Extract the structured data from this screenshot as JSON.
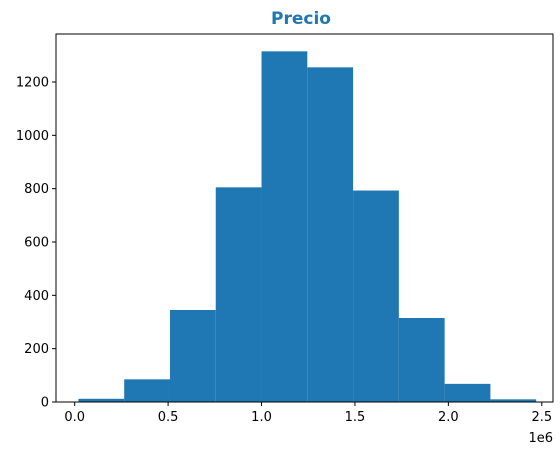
{
  "chart_data": {
    "type": "bar",
    "title": "Precio",
    "title_color": "#1f77b4",
    "bar_color": "#1f77b4",
    "xlabel": "",
    "ylabel": "",
    "x_offset_label": "1e6",
    "xlim": [
      -0.1,
      2.56
    ],
    "ylim": [
      0,
      1380
    ],
    "x_ticks": [
      0.0,
      0.5,
      1.0,
      1.5,
      2.0,
      2.5
    ],
    "x_tick_labels": [
      "0.0",
      "0.5",
      "1.0",
      "1.5",
      "2.0",
      "2.5"
    ],
    "y_ticks": [
      0,
      200,
      400,
      600,
      800,
      1000,
      1200
    ],
    "y_tick_labels": [
      "0",
      "200",
      "400",
      "600",
      "800",
      "1000",
      "1200"
    ],
    "bins": [
      {
        "x0": 0.02,
        "x1": 0.265,
        "count": 12
      },
      {
        "x0": 0.265,
        "x1": 0.51,
        "count": 85
      },
      {
        "x0": 0.51,
        "x1": 0.755,
        "count": 345
      },
      {
        "x0": 0.755,
        "x1": 1.0,
        "count": 805
      },
      {
        "x0": 1.0,
        "x1": 1.245,
        "count": 1315
      },
      {
        "x0": 1.245,
        "x1": 1.49,
        "count": 1255
      },
      {
        "x0": 1.49,
        "x1": 1.735,
        "count": 793
      },
      {
        "x0": 1.735,
        "x1": 1.98,
        "count": 315
      },
      {
        "x0": 1.98,
        "x1": 2.225,
        "count": 68
      },
      {
        "x0": 2.225,
        "x1": 2.47,
        "count": 10
      }
    ],
    "grid": false,
    "legend": "none"
  }
}
